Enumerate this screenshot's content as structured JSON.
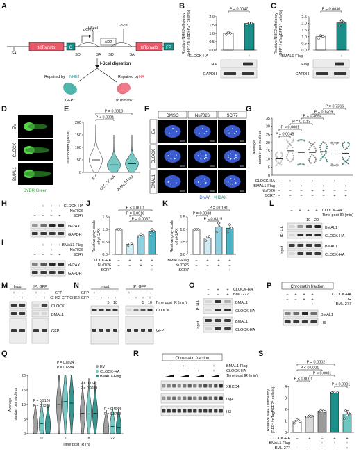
{
  "panels": {
    "A": {
      "letter": "A",
      "pcmv": "pCMV",
      "isce1": "I-SceI",
      "isce2": "I-SceI",
      "ad2": "AD2",
      "tdtomato": "tdTomato",
      "g": "G",
      "sd1": "SD",
      "sa1": "SA",
      "sd2": "SD",
      "sa2": "SA",
      "sa_left": "SA",
      "fp": "FP",
      "digestion": "I-SceI digestion",
      "repaired_nhej_prefix": "Repaired by ",
      "repaired_nhej_word": "NHEJ",
      "repaired_hr_prefix": "Repaired by ",
      "repaired_hr_word": "HR",
      "gfp_label": "GFP⁺",
      "tdtomato_label": "tdTomato⁺"
    },
    "B": {
      "letter": "B",
      "pval": "P = 0.0047",
      "ylabel1": "Relative NHEJ efficiency",
      "ylabel2": "(GFP⁺/mTagBFP2⁺ cells%)",
      "ticks": [
        "0.0",
        "0.5",
        "1.0",
        "1.5",
        "2.0"
      ],
      "row_label": "CLOCK-HA",
      "signs": [
        "−",
        "+"
      ],
      "blot1": "HA",
      "blot2": "GAPDH"
    },
    "C": {
      "letter": "C",
      "pval": "P = 0.0030",
      "ylabel1": "Relative NHEJ efficiency",
      "ylabel2": "(GFP⁺/mTagBFP2⁺ cells%)",
      "ticks": [
        "0.0",
        "0.5",
        "1.0",
        "1.5",
        "2.0",
        "2.5"
      ],
      "row_label": "BMAL1-Flag",
      "signs": [
        "−",
        "+"
      ],
      "blot1": "Flag",
      "blot2": "GAPDH"
    },
    "D": {
      "letter": "D",
      "rows": [
        "EV",
        "CLOCK",
        "BMAL1"
      ],
      "caption": "SYBR Green"
    },
    "E": {
      "letter": "E",
      "p1": "P = 0.0010",
      "p2": "P < 0.0001",
      "ylabel": "Tail moment (pixels)",
      "ticks": [
        "0",
        "50",
        "100",
        "150",
        "200"
      ],
      "groups": [
        "EV",
        "CLOCK-HA",
        "BMAL1-Flag"
      ]
    },
    "F": {
      "letter": "F",
      "cols": [
        "DMSO",
        "Nu7026",
        "SCR7"
      ],
      "rows": [
        "EV",
        "CLOCK",
        "BMAL1"
      ],
      "caption_a": "DNA",
      "caption_sep": " / ",
      "caption_b": "γH2AX"
    },
    "G": {
      "letter": "G",
      "ylabel_a": "Average ",
      "ylabel_b": "γH2AX",
      "ylabel_c": " foci",
      "ylabel2": "number per nucleus",
      "ticks": [
        "0",
        "5",
        "10",
        "15",
        "20",
        "25",
        "30",
        "35"
      ],
      "pvals": [
        "P < 0.0001",
        "P = 0.0045",
        "P = 0.3664",
        "P = 0.1113",
        "P = 0.1409",
        "P = 0.7266"
      ],
      "row_labels": [
        "CLOCK-HA",
        "BMAL1-Flag",
        "Nu7026",
        "SCR7"
      ],
      "sign_rows": [
        [
          "−",
          "+",
          "−",
          "+",
          "−",
          "+",
          "−"
        ],
        [
          "−",
          "−",
          "+",
          "−",
          "+",
          "−",
          "+"
        ],
        [
          "−",
          "−",
          "−",
          "+",
          "+",
          "−",
          "−"
        ],
        [
          "−",
          "−",
          "−",
          "−",
          "−",
          "+",
          "+"
        ]
      ]
    },
    "H": {
      "letter": "H",
      "row_labels": [
        "CLOCK-HA",
        "Nu7026",
        "SCR7"
      ],
      "sign_rows": [
        [
          "−",
          "+",
          "+",
          "+"
        ],
        [
          "−",
          "−",
          "+",
          "−"
        ],
        [
          "−",
          "−",
          "−",
          "+"
        ]
      ],
      "blot1": "γH2AX",
      "blot2": "GAPDH"
    },
    "I": {
      "letter": "I",
      "row_labels": [
        "BMAL1-Flag",
        "Nu7026",
        "SCR7"
      ],
      "sign_rows": [
        [
          "−",
          "+",
          "+",
          "+"
        ],
        [
          "−",
          "−",
          "+",
          "−"
        ],
        [
          "−",
          "−",
          "−",
          "+"
        ]
      ],
      "blot1": "γH2AX",
      "blot2": "GAPDH"
    },
    "J": {
      "letter": "J",
      "ylabel1": "Relative gray scale",
      "ylabel2": "of γH2AX",
      "ticks": [
        "0.0",
        "0.5",
        "1.0",
        "1.5"
      ],
      "pvals": [
        "P < 0.0001",
        "P = 0.0018",
        "P = 0.0037"
      ],
      "row_labels": [
        "CLOCK-HA",
        "Nu7026",
        "SCR7"
      ],
      "sign_rows": [
        [
          "−",
          "+",
          "+",
          "+"
        ],
        [
          "−",
          "−",
          "+",
          "−"
        ],
        [
          "−",
          "−",
          "−",
          "+"
        ]
      ]
    },
    "K": {
      "letter": "K",
      "ylabel1": "Relative gray scale",
      "ylabel2": "of γH2AX",
      "ticks": [
        "0.0",
        "0.5",
        "1.0",
        "1.5"
      ],
      "pvals": [
        "P = 0.0033",
        "P = 0.0181",
        "P = 0.0315"
      ],
      "row_labels": [
        "BMAL1-Flag",
        "Nu7026",
        "SCR7"
      ],
      "sign_rows": [
        [
          "−",
          "+",
          "+",
          "+"
        ],
        [
          "−",
          "−",
          "+",
          "−"
        ],
        [
          "−",
          "−",
          "−",
          "+"
        ]
      ]
    },
    "L": {
      "letter": "L",
      "row1_label": "CLOCK-HA",
      "row1": [
        "−",
        "+",
        "+",
        "+"
      ],
      "row2_label": "Time post IR (min)",
      "row2": [
        "",
        "",
        "10",
        "20"
      ],
      "ip": "IP: HA",
      "input": "Input",
      "blots": [
        "BMAL1",
        "CLOCK-HA",
        "BMAL1",
        "CLOCK-HA"
      ]
    },
    "M": {
      "letter": "M",
      "input": "Input",
      "ip": "IP: GFP",
      "row1_label": "GFP",
      "row1": [
        "+",
        "−",
        "+",
        "−"
      ],
      "row2_label": "CHK2-GFP",
      "row2": [
        "−",
        "+",
        "−",
        "+"
      ],
      "blots": [
        "CLOCK",
        "BMAL1",
        "GFP"
      ]
    },
    "N": {
      "letter": "N",
      "input": "Input",
      "ip": "IP: GFP",
      "row1_label": "GFP",
      "row1": [
        "+",
        "−",
        "−",
        "−",
        "+",
        "−",
        "−",
        "−"
      ],
      "row2_label": "CHK2-GFP",
      "row2": [
        "−",
        "+",
        "+",
        "+",
        "−",
        "+",
        "+",
        "+"
      ],
      "row3_label": "Time post IR (min)",
      "row3": [
        "",
        "",
        "5",
        "10",
        "",
        "",
        "5",
        "10"
      ],
      "blots": [
        "CLOCK",
        "GFP"
      ]
    },
    "O": {
      "letter": "O",
      "row1_label": "CLOCK-HA",
      "row1": [
        "−",
        "+",
        "+"
      ],
      "row2_label": "BML-277",
      "row2": [
        "−",
        "−",
        "+"
      ],
      "ip": "IP: HA",
      "input": "Input",
      "blots": [
        "BMAL1",
        "CLOCK-HA",
        "BMAL1",
        "CLOCK-HA"
      ]
    },
    "P": {
      "letter": "P",
      "title": "Chromatin fraction",
      "row_labels": [
        "CLOCK-HA",
        "IR",
        "BML-277"
      ],
      "sign_rows": [
        [
          "−",
          "+",
          "+",
          "+"
        ],
        [
          "−",
          "−",
          "+",
          "+"
        ],
        [
          "−",
          "−",
          "−",
          "+"
        ]
      ],
      "blots": [
        "BMAL1",
        "H3"
      ]
    },
    "Q": {
      "letter": "Q",
      "ylabel_a": "Average ",
      "ylabel_b": "53BP1",
      "ylabel_c": " foci",
      "ylabel2": "number per nucleus",
      "ticks": [
        "0",
        "5",
        "10",
        "15",
        "20"
      ],
      "xlabel": "Time post IR (h)",
      "xticks": [
        "0",
        "2",
        "8",
        "22"
      ],
      "legend": [
        "EV",
        "CLOCK-HA",
        "BMAL1-Flag"
      ],
      "pvals": [
        [
          "P = 0.9126",
          "P = 0.7379"
        ],
        [
          "P = 0.8924",
          "P = 0.6584"
        ],
        [
          "P = 0.1541",
          "P = 0.9939"
        ],
        [
          "P = 0.4044",
          "P = 0.5768"
        ]
      ]
    },
    "R": {
      "letter": "R",
      "title": "Chromatin fraction",
      "row1_label": "BMAL1-Flag",
      "row2_label": "CLOCK-HA",
      "row3_label": "Time post IR (min)",
      "row1": [
        "−",
        "+",
        "−",
        "+"
      ],
      "row2": [
        "−",
        "−",
        "+",
        "+"
      ],
      "blots": [
        "XRCC4",
        "Lig4",
        "H3"
      ]
    },
    "S": {
      "letter": "S",
      "ylabel1": "Relative NHEJ efficiency",
      "ylabel2": "(GFP⁺/mTagBFP2⁺ cells%)",
      "ticks": [
        "0",
        "1",
        "2",
        "3",
        "4"
      ],
      "pvals": [
        "P = 0.0002",
        "P < 0.0001",
        "P < 0.0001",
        "P < 0.0001",
        "P < 0.0001"
      ],
      "row_labels": [
        "CLOCK-HA",
        "BMAL1-Flag",
        "BML-277"
      ],
      "sign_rows": [
        [
          "−",
          "+",
          "−",
          "+",
          "+"
        ],
        [
          "−",
          "−",
          "+",
          "+",
          "+"
        ],
        [
          "−",
          "−",
          "−",
          "−",
          "+"
        ]
      ]
    }
  },
  "chart_data": [
    {
      "panel": "B",
      "type": "bar",
      "categories": [
        "−",
        "+"
      ],
      "values": [
        1.0,
        1.6
      ],
      "ylim": [
        0,
        2.0
      ],
      "errors": [
        0.08,
        0.06
      ],
      "points": [
        [
          0.92,
          1.05,
          1.0
        ],
        [
          1.55,
          1.63,
          1.62
        ]
      ],
      "colors": [
        "#ffffff",
        "#1a8f89"
      ]
    },
    {
      "panel": "C",
      "type": "bar",
      "categories": [
        "−",
        "+"
      ],
      "values": [
        1.0,
        2.05
      ],
      "ylim": [
        0,
        2.5
      ],
      "errors": [
        0.1,
        0.15
      ],
      "points": [
        [
          0.85,
          1.1,
          1.02
        ],
        [
          1.8,
          2.2,
          2.1
        ]
      ],
      "colors": [
        "#ffffff",
        "#1a8f89"
      ]
    },
    {
      "panel": "E",
      "type": "violin",
      "categories": [
        "EV",
        "CLOCK-HA",
        "BMAL1-Flag"
      ],
      "medians": [
        50,
        30,
        35
      ],
      "ylim": [
        0,
        200
      ],
      "colors": [
        "#ffffff",
        "#6ec6c0",
        "#6ec6c0"
      ]
    },
    {
      "panel": "G",
      "type": "scatter",
      "categories": [
        "1",
        "2",
        "3",
        "4",
        "5",
        "6",
        "7"
      ],
      "means": [
        10,
        15,
        14,
        14,
        14.5,
        13,
        13.5
      ],
      "ylim": [
        0,
        35
      ],
      "colors": [
        "#ffffff",
        "#d8d8d8",
        "#8fd3cd",
        "#9a9a9a",
        "#3aa6a0",
        "#cfcfcf",
        "#2e8f89"
      ]
    },
    {
      "panel": "J",
      "type": "bar",
      "categories": [
        "1",
        "2",
        "3",
        "4"
      ],
      "values": [
        1.0,
        0.4,
        0.75,
        0.9
      ],
      "ylim": [
        0,
        1.5
      ],
      "errors": [
        0.02,
        0.05,
        0.05,
        0.08
      ],
      "points": [
        [
          1.0,
          1.0,
          1.0
        ],
        [
          0.35,
          0.42,
          0.44
        ],
        [
          0.7,
          0.8,
          0.76
        ],
        [
          0.8,
          1.0,
          0.92
        ]
      ],
      "colors": [
        "#ffffff",
        "#d0ecf2",
        "#8fd0e0",
        "#4ab3c6"
      ]
    },
    {
      "panel": "K",
      "type": "bar",
      "categories": [
        "1",
        "2",
        "3",
        "4"
      ],
      "values": [
        1.0,
        0.65,
        1.1,
        1.05
      ],
      "ylim": [
        0,
        1.5
      ],
      "errors": [
        0.02,
        0.08,
        0.15,
        0.12
      ],
      "points": [
        [
          1.0,
          1.0,
          1.0
        ],
        [
          0.55,
          0.7,
          0.72
        ],
        [
          0.9,
          1.25,
          1.15
        ],
        [
          0.9,
          1.2,
          1.05
        ]
      ],
      "colors": [
        "#ffffff",
        "#d0ecf2",
        "#8fd0e0",
        "#4ab3c6"
      ]
    },
    {
      "panel": "Q",
      "type": "violin",
      "x": [
        "0",
        "2",
        "8",
        "22"
      ],
      "series": [
        {
          "name": "EV",
          "medians": [
            3,
            10,
            7,
            2
          ]
        },
        {
          "name": "CLOCK-HA",
          "medians": [
            3.5,
            11,
            7.5,
            2.5
          ]
        },
        {
          "name": "BMAL1-Flag",
          "medians": [
            3,
            10.5,
            7,
            2.2
          ]
        }
      ],
      "ylim": [
        0,
        20
      ],
      "colors": [
        "#9a9a9a",
        "#6ec6c0",
        "#2e8f89"
      ]
    },
    {
      "panel": "S",
      "type": "bar",
      "categories": [
        "1",
        "2",
        "3",
        "4",
        "5"
      ],
      "values": [
        1.0,
        1.4,
        1.85,
        3.5,
        1.6
      ],
      "ylim": [
        0,
        4
      ],
      "errors": [
        0.08,
        0.05,
        0.08,
        0.06,
        0.3
      ],
      "points": [
        [
          0.8,
          1.0,
          1.1,
          1.05,
          0.95
        ],
        [
          1.35,
          1.4,
          1.45,
          1.38,
          1.42
        ],
        [
          1.8,
          1.9,
          1.85,
          1.88,
          1.82
        ],
        [
          3.45,
          3.55,
          3.5,
          3.52,
          3.48
        ],
        [
          1.2,
          1.9,
          1.5,
          1.7,
          1.6
        ]
      ],
      "colors": [
        "#ffffff",
        "#d8d8d8",
        "#9a9a9a",
        "#1a8f89",
        "#6ec6c0"
      ]
    }
  ]
}
